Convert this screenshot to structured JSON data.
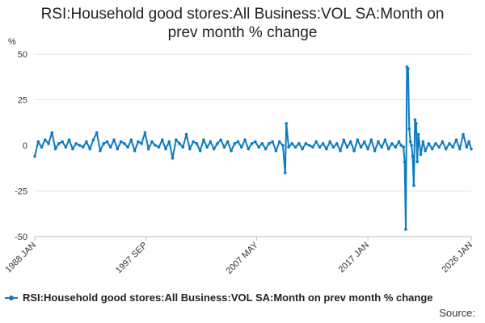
{
  "chart_data": {
    "type": "line",
    "title_line1": "RSI:Household good stores:All Business:VOL SA:Month on",
    "title_line2": "prev month % change",
    "ylabel": "%",
    "ylim": [
      -50,
      50
    ],
    "yticks": [
      -50,
      -25,
      0,
      25,
      50
    ],
    "xlim": [
      1988.0,
      2026.0
    ],
    "xticks": [
      {
        "label": "1988 JAN",
        "value": 1988.0
      },
      {
        "label": "1997 SEP",
        "value": 1997.67
      },
      {
        "label": "2007 MAY",
        "value": 2007.33
      },
      {
        "label": "2017 JAN",
        "value": 2017.0
      },
      {
        "label": "2026 JAN",
        "value": 2026.0
      }
    ],
    "grid": "horizontal",
    "color": "#0d7bc0",
    "series": [
      {
        "name": "RSI:Household good stores:All Business:VOL SA:Month on prev month % change",
        "points": [
          [
            1988.0,
            -6
          ],
          [
            1988.3,
            2
          ],
          [
            1988.6,
            -1
          ],
          [
            1988.9,
            3
          ],
          [
            1989.2,
            1
          ],
          [
            1989.5,
            7
          ],
          [
            1989.8,
            -2
          ],
          [
            1990.1,
            1
          ],
          [
            1990.4,
            2
          ],
          [
            1990.7,
            -1
          ],
          [
            1991.0,
            3
          ],
          [
            1991.3,
            -2
          ],
          [
            1991.6,
            1
          ],
          [
            1991.9,
            0
          ],
          [
            1992.2,
            -1
          ],
          [
            1992.5,
            2
          ],
          [
            1992.8,
            -2
          ],
          [
            1993.1,
            3
          ],
          [
            1993.4,
            7
          ],
          [
            1993.7,
            -3
          ],
          [
            1994.0,
            1
          ],
          [
            1994.3,
            2
          ],
          [
            1994.6,
            -1
          ],
          [
            1994.9,
            3
          ],
          [
            1995.2,
            -2
          ],
          [
            1995.5,
            2
          ],
          [
            1995.8,
            1
          ],
          [
            1996.1,
            -1
          ],
          [
            1996.4,
            3
          ],
          [
            1996.7,
            -3
          ],
          [
            1997.0,
            2
          ],
          [
            1997.3,
            1
          ],
          [
            1997.6,
            7
          ],
          [
            1997.9,
            -2
          ],
          [
            1998.2,
            2
          ],
          [
            1998.5,
            0
          ],
          [
            1998.8,
            -1
          ],
          [
            1999.1,
            3
          ],
          [
            1999.4,
            -2
          ],
          [
            1999.7,
            2
          ],
          [
            2000.0,
            -7
          ],
          [
            2000.3,
            3
          ],
          [
            2000.6,
            1
          ],
          [
            2000.9,
            -1
          ],
          [
            2001.2,
            6
          ],
          [
            2001.5,
            -2
          ],
          [
            2001.8,
            2
          ],
          [
            2002.1,
            1
          ],
          [
            2002.4,
            -3
          ],
          [
            2002.7,
            3
          ],
          [
            2003.0,
            -1
          ],
          [
            2003.3,
            2
          ],
          [
            2003.6,
            -2
          ],
          [
            2003.9,
            1
          ],
          [
            2004.2,
            3
          ],
          [
            2004.5,
            -1
          ],
          [
            2004.8,
            2
          ],
          [
            2005.1,
            -3
          ],
          [
            2005.4,
            1
          ],
          [
            2005.7,
            2
          ],
          [
            2006.0,
            -1
          ],
          [
            2006.3,
            3
          ],
          [
            2006.6,
            -2
          ],
          [
            2006.9,
            1
          ],
          [
            2007.2,
            2
          ],
          [
            2007.5,
            -1
          ],
          [
            2007.8,
            1
          ],
          [
            2008.1,
            -2
          ],
          [
            2008.4,
            1
          ],
          [
            2008.7,
            2
          ],
          [
            2009.0,
            -3
          ],
          [
            2009.3,
            2
          ],
          [
            2009.6,
            0
          ],
          [
            2009.8,
            -15
          ],
          [
            2009.9,
            12
          ],
          [
            2010.1,
            -1
          ],
          [
            2010.4,
            1
          ],
          [
            2010.7,
            -1
          ],
          [
            2011.0,
            1
          ],
          [
            2011.3,
            -2
          ],
          [
            2011.6,
            1
          ],
          [
            2011.9,
            0
          ],
          [
            2012.2,
            -1
          ],
          [
            2012.5,
            2
          ],
          [
            2012.8,
            -1
          ],
          [
            2013.1,
            1
          ],
          [
            2013.4,
            -2
          ],
          [
            2013.7,
            2
          ],
          [
            2014.0,
            -1
          ],
          [
            2014.3,
            1
          ],
          [
            2014.6,
            -3
          ],
          [
            2014.9,
            3
          ],
          [
            2015.2,
            -1
          ],
          [
            2015.5,
            2
          ],
          [
            2015.8,
            -3
          ],
          [
            2016.1,
            3
          ],
          [
            2016.4,
            -1
          ],
          [
            2016.7,
            2
          ],
          [
            2017.0,
            -2
          ],
          [
            2017.3,
            3
          ],
          [
            2017.6,
            -3
          ],
          [
            2017.9,
            2
          ],
          [
            2018.2,
            -1
          ],
          [
            2018.5,
            3
          ],
          [
            2018.8,
            -2
          ],
          [
            2019.1,
            1
          ],
          [
            2019.4,
            -1
          ],
          [
            2019.7,
            2
          ],
          [
            2019.9,
            0
          ],
          [
            2020.1,
            -1
          ],
          [
            2020.2,
            -9
          ],
          [
            2020.3,
            -46
          ],
          [
            2020.4,
            43
          ],
          [
            2020.5,
            42
          ],
          [
            2020.6,
            9
          ],
          [
            2020.7,
            2
          ],
          [
            2020.8,
            0
          ],
          [
            2020.9,
            -6
          ],
          [
            2021.0,
            -22
          ],
          [
            2021.1,
            14
          ],
          [
            2021.2,
            12
          ],
          [
            2021.3,
            -9
          ],
          [
            2021.4,
            6
          ],
          [
            2021.6,
            -5
          ],
          [
            2021.8,
            2
          ],
          [
            2022.0,
            -3
          ],
          [
            2022.3,
            1
          ],
          [
            2022.6,
            -2
          ],
          [
            2022.9,
            1
          ],
          [
            2023.2,
            -1
          ],
          [
            2023.5,
            2
          ],
          [
            2023.8,
            -2
          ],
          [
            2024.1,
            1
          ],
          [
            2024.4,
            -1
          ],
          [
            2024.7,
            3
          ],
          [
            2025.0,
            -2
          ],
          [
            2025.3,
            6
          ],
          [
            2025.6,
            -1
          ],
          [
            2025.8,
            2
          ],
          [
            2026.0,
            -2
          ]
        ]
      }
    ],
    "legend_position": "bottom-left",
    "source_label": "Source:"
  }
}
